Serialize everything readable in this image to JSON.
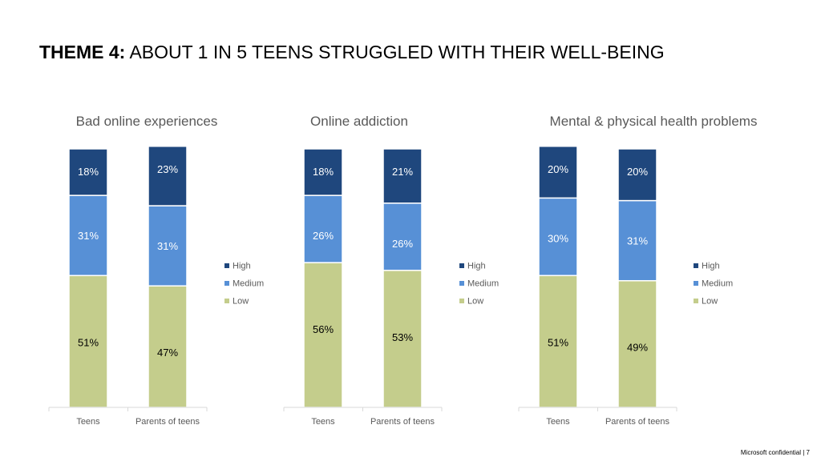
{
  "slide": {
    "title_strong": "THEME 4:",
    "title_rest": " ABOUT 1 IN 5 TEENS STRUGGLED WITH THEIR WELL-BEING",
    "footer": "Microsoft confidential | 7"
  },
  "colors": {
    "High": "#1f477d",
    "Medium": "#5790d6",
    "Low": "#c4cd8c"
  },
  "chart_data": [
    {
      "type": "bar",
      "stacked": true,
      "title": "Bad online experiences",
      "categories": [
        "Teens",
        "Parents of teens"
      ],
      "series": [
        {
          "name": "Low",
          "values": [
            51,
            47
          ]
        },
        {
          "name": "Medium",
          "values": [
            31,
            31
          ]
        },
        {
          "name": "High",
          "values": [
            18,
            23
          ]
        }
      ],
      "ylim": [
        0,
        100
      ],
      "legend": "right",
      "legend_order": [
        "High",
        "Medium",
        "Low"
      ],
      "grid": false
    },
    {
      "type": "bar",
      "stacked": true,
      "title": "Online addiction",
      "categories": [
        "Teens",
        "Parents of teens"
      ],
      "series": [
        {
          "name": "Low",
          "values": [
            56,
            53
          ]
        },
        {
          "name": "Medium",
          "values": [
            26,
            26
          ]
        },
        {
          "name": "High",
          "values": [
            18,
            21
          ]
        }
      ],
      "ylim": [
        0,
        100
      ],
      "legend": "right",
      "legend_order": [
        "High",
        "Medium",
        "Low"
      ],
      "grid": false
    },
    {
      "type": "bar",
      "stacked": true,
      "title": "Mental & physical health problems",
      "categories": [
        "Teens",
        "Parents of teens"
      ],
      "series": [
        {
          "name": "Low",
          "values": [
            51,
            49
          ]
        },
        {
          "name": "Medium",
          "values": [
            30,
            31
          ]
        },
        {
          "name": "High",
          "values": [
            20,
            20
          ]
        }
      ],
      "ylim": [
        0,
        100
      ],
      "legend": "right",
      "legend_order": [
        "High",
        "Medium",
        "Low"
      ],
      "grid": false
    }
  ]
}
